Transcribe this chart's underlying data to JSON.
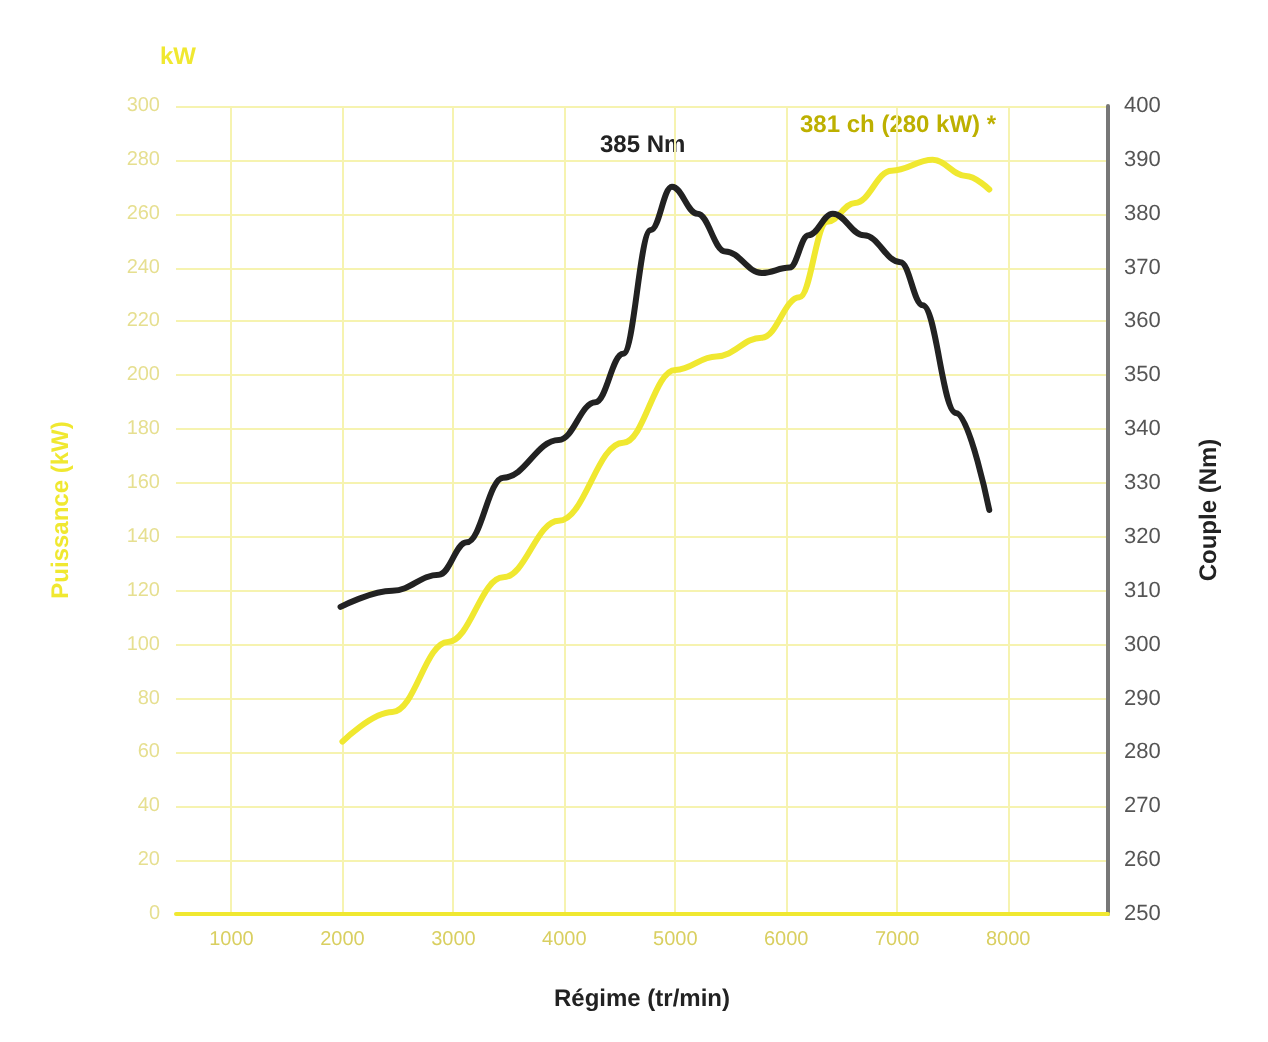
{
  "chart_data": {
    "type": "line",
    "xlabel": "Régime (tr/min)",
    "ylabel": "Puissance (kW)",
    "y2label": "Couple (Nm)",
    "xlim": [
      500,
      8900
    ],
    "xticks": [
      1000,
      2000,
      3000,
      4000,
      5000,
      6000,
      7000,
      8000
    ],
    "ylim": [
      0,
      300
    ],
    "yticks": [
      0,
      20,
      40,
      60,
      80,
      100,
      120,
      140,
      160,
      180,
      200,
      220,
      240,
      260,
      280,
      300
    ],
    "y2lim": [
      250,
      400
    ],
    "y2ticks": [
      250,
      260,
      270,
      280,
      290,
      300,
      310,
      320,
      330,
      340,
      350,
      360,
      370,
      380,
      390,
      400
    ],
    "grid": true,
    "marker": "none",
    "line_style": "solid",
    "series": [
      {
        "color": "#f0e830",
        "x": [
          2000,
          2450,
          2950,
          3450,
          3950,
          4530,
          5000,
          5370,
          5780,
          6120,
          6370,
          6620,
          6950,
          7320,
          7620,
          7830
        ],
        "values": [
          64,
          75,
          101,
          125,
          146,
          175,
          202,
          207,
          214,
          229,
          257,
          264,
          276,
          280,
          274,
          269
        ]
      },
      {
        "color": "#222222",
        "axis": "y2",
        "x": [
          1983,
          2450,
          2870,
          3120,
          3450,
          3950,
          4280,
          4530,
          4780,
          4970,
          5200,
          5450,
          5780,
          6030,
          6200,
          6420,
          6700,
          7030,
          7230,
          7530,
          7830
        ],
        "values": [
          307,
          310,
          313,
          319,
          331,
          338,
          345,
          354,
          377,
          385,
          380,
          373,
          369,
          370,
          376,
          380,
          376,
          371,
          363,
          343,
          325
        ]
      }
    ],
    "annotations": [
      "385 Nm",
      "381 ch (280 kW) *",
      "kW"
    ]
  }
}
